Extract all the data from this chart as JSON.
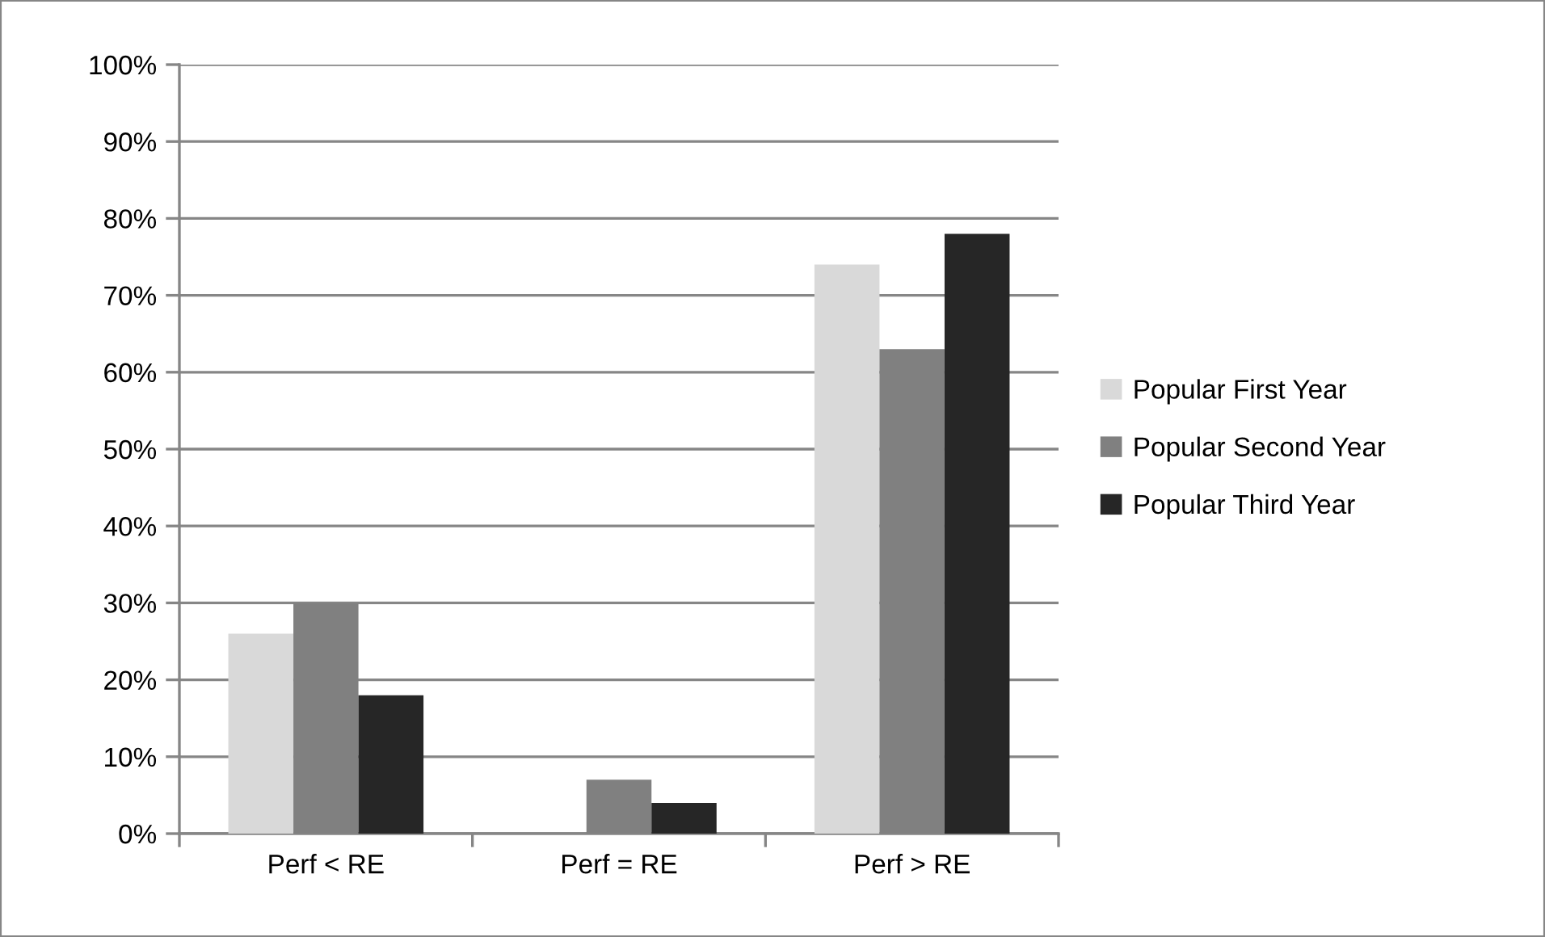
{
  "chart_data": {
    "type": "bar",
    "categories": [
      "Perf < RE",
      "Perf = RE",
      "Perf > RE"
    ],
    "series": [
      {
        "name": "Popular First Year",
        "color": "#d9d9d9",
        "values": [
          26,
          0,
          74
        ]
      },
      {
        "name": "Popular Second Year",
        "color": "#808080",
        "values": [
          30,
          7,
          63
        ]
      },
      {
        "name": "Popular Third Year",
        "color": "#262626",
        "values": [
          18,
          4,
          78
        ]
      }
    ],
    "ylim": [
      0,
      100
    ],
    "yticks": [
      {
        "value": 0,
        "label": "0%"
      },
      {
        "value": 10,
        "label": "10%"
      },
      {
        "value": 20,
        "label": "20%"
      },
      {
        "value": 30,
        "label": "30%"
      },
      {
        "value": 40,
        "label": "40%"
      },
      {
        "value": 50,
        "label": "50%"
      },
      {
        "value": 60,
        "label": "60%"
      },
      {
        "value": 70,
        "label": "70%"
      },
      {
        "value": 80,
        "label": "80%"
      },
      {
        "value": 90,
        "label": "90%"
      },
      {
        "value": 100,
        "label": "100%"
      }
    ],
    "grid": "y",
    "legend": "right"
  }
}
